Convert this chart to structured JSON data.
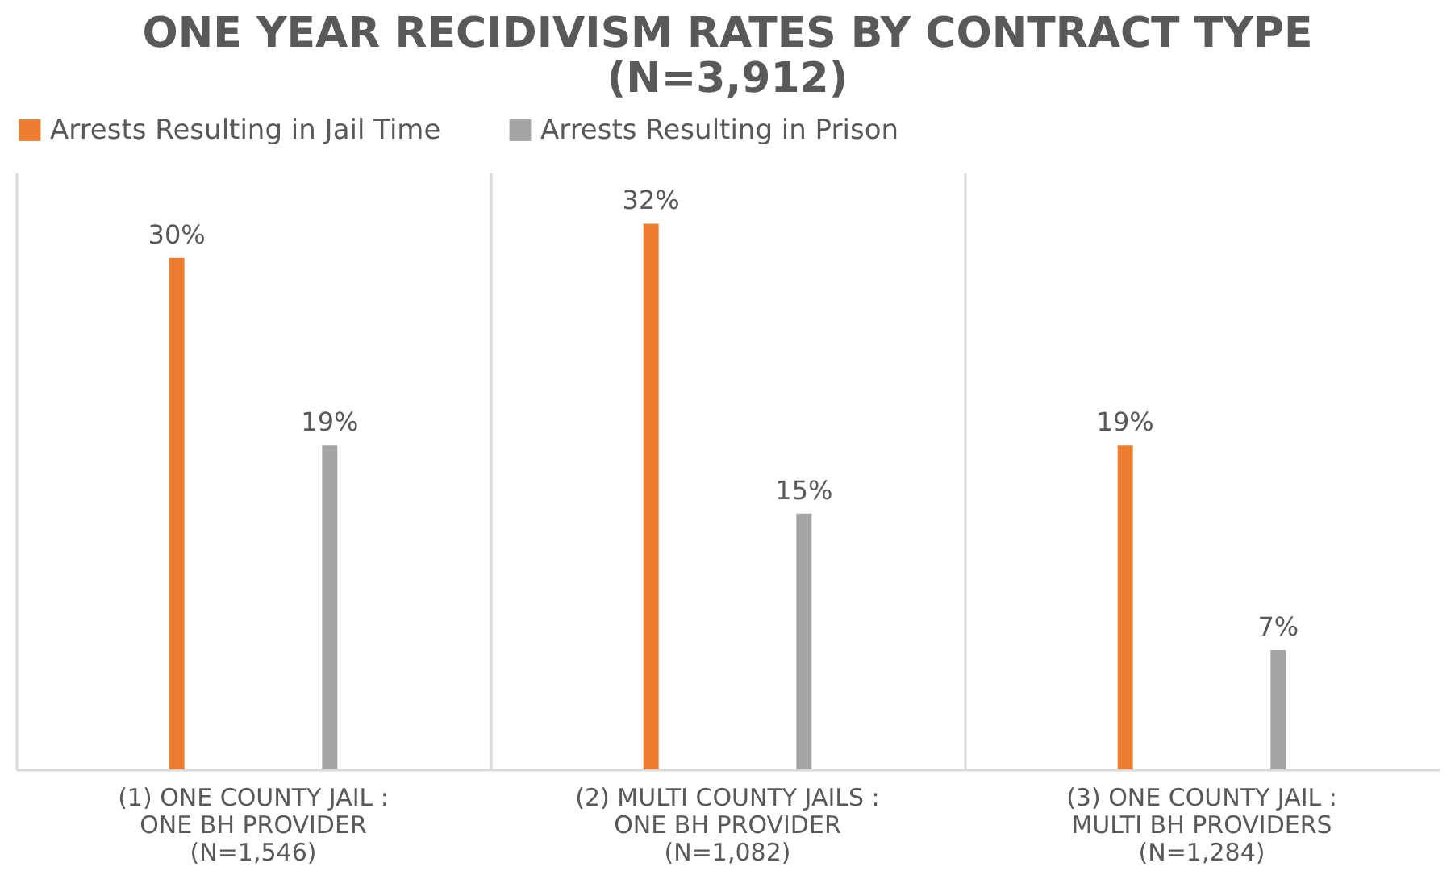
{
  "chart_data": {
    "type": "bar",
    "title": "ONE YEAR RECIDIVISM RATES BY CONTRACT TYPE (N=3,912)",
    "categories": [
      "(1) ONE COUNTY JAIL :\nONE BH PROVIDER\n(N=1,546)",
      "(2) MULTI COUNTY JAILS :\nONE BH PROVIDER\n(N=1,082)",
      "(3) ONE COUNTY JAIL :\nMULTI BH PROVIDERS\n(N=1,284)"
    ],
    "series": [
      {
        "name": "Arrests Resulting in Jail Time",
        "color": "#ed7d31",
        "values": [
          30,
          32,
          19
        ],
        "value_labels": [
          "30%",
          "32%",
          "19%"
        ]
      },
      {
        "name": "Arrests Resulting in Prison",
        "color": "#a5a5a5",
        "values": [
          19,
          15,
          7
        ],
        "value_labels": [
          "19%",
          "15%",
          "7%"
        ]
      }
    ],
    "legend": "top",
    "grid": "x"
  }
}
